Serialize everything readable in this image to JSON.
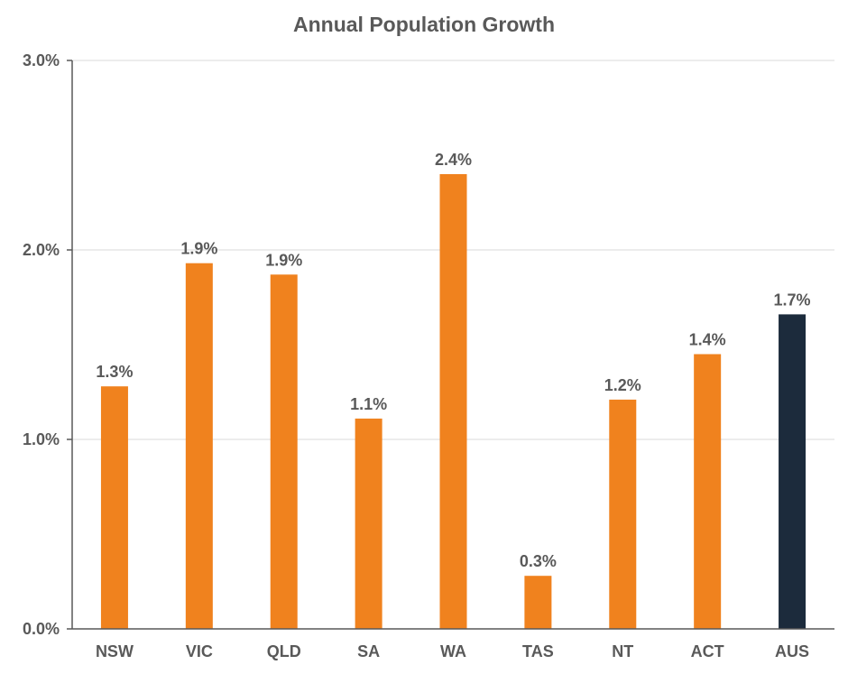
{
  "chart_data": {
    "type": "bar",
    "title": "Annual Population Growth",
    "xlabel": "",
    "ylabel": "",
    "categories": [
      "NSW",
      "VIC",
      "QLD",
      "SA",
      "WA",
      "TAS",
      "NT",
      "ACT",
      "AUS"
    ],
    "values": [
      1.28,
      1.93,
      1.87,
      1.11,
      2.4,
      0.28,
      1.21,
      1.45,
      1.66
    ],
    "data_labels": [
      "1.3%",
      "1.9%",
      "1.9%",
      "1.1%",
      "2.4%",
      "0.3%",
      "1.2%",
      "1.4%",
      "1.7%"
    ],
    "yticks": [
      0,
      1,
      2,
      3
    ],
    "ytick_labels": [
      "0.0%",
      "1.0%",
      "2.0%",
      "3.0%"
    ],
    "ylim": [
      0,
      3
    ],
    "grid": true,
    "legend": "none",
    "colors": {
      "bar": "#f0821e",
      "highlight_bar": "#1c2b3c",
      "text": "#595959",
      "grid": "#d9d9d9"
    },
    "highlight_categories": [
      "AUS"
    ]
  }
}
